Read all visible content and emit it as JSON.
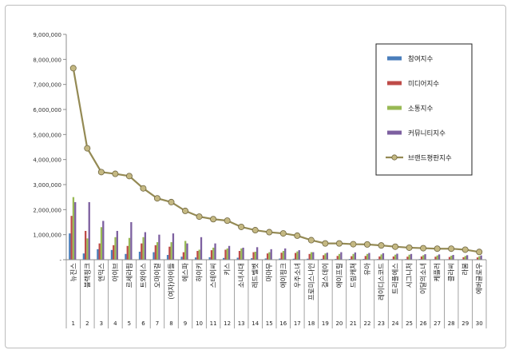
{
  "chart_data": {
    "type": "bar",
    "title": "",
    "xlabel": "",
    "ylabel": "",
    "ylim": [
      0,
      9000000
    ],
    "yticks": [
      "9,000,000",
      "8,000,000",
      "7,000,000",
      "6,000,000",
      "5,000,000",
      "4,000,000",
      "3,000,000",
      "2,000,000",
      "1,000,000",
      "-"
    ],
    "legend_position": "top-right",
    "grid": false,
    "categories": [
      "뉴진스",
      "블랙핑크",
      "엔믹스",
      "아이브",
      "르세라핌",
      "트와이스",
      "오마이걸",
      "(여자)아이들",
      "에스파",
      "하이키",
      "스테이씨",
      "키스",
      "소녀시대",
      "레드벨벳",
      "마마무",
      "에이핑크",
      "우주소녀",
      "프로미스나인",
      "걸스데이",
      "에이프릴",
      "드림캐쳐",
      "유아",
      "레이디스코드",
      "트리플에스",
      "시그니처",
      "이달의소녀",
      "케플러",
      "클라씨",
      "라붐",
      "에버글로우"
    ],
    "ranks": [
      "1",
      "2",
      "3",
      "4",
      "5",
      "6",
      "7",
      "8",
      "9",
      "10",
      "11",
      "12",
      "13",
      "14",
      "15",
      "16",
      "17",
      "18",
      "19",
      "20",
      "21",
      "22",
      "23",
      "24",
      "25",
      "26",
      "27",
      "28",
      "29",
      "30"
    ],
    "series": [
      {
        "name": "참여지수",
        "color": "#4a7ebb",
        "values": [
          1050000,
          250000,
          420000,
          390000,
          230000,
          320000,
          300000,
          190000,
          120000,
          90000,
          100000,
          70000,
          80000,
          60000,
          50000,
          45000,
          40000,
          40000,
          35000,
          30000,
          30000,
          30000,
          25000,
          25000,
          25000,
          25000,
          20000,
          20000,
          20000,
          20000
        ]
      },
      {
        "name": "미디어지수",
        "color": "#be4b48",
        "values": [
          1750000,
          1150000,
          650000,
          580000,
          550000,
          650000,
          580000,
          520000,
          300000,
          350000,
          380000,
          400000,
          350000,
          300000,
          250000,
          280000,
          270000,
          230000,
          180000,
          150000,
          140000,
          150000,
          130000,
          130000,
          120000,
          130000,
          120000,
          110000,
          100000,
          90000
        ]
      },
      {
        "name": "소통지수",
        "color": "#98b954",
        "values": [
          2500000,
          850000,
          1300000,
          900000,
          870000,
          900000,
          700000,
          700000,
          750000,
          400000,
          480000,
          450000,
          450000,
          320000,
          300000,
          350000,
          330000,
          300000,
          250000,
          230000,
          230000,
          230000,
          210000,
          200000,
          200000,
          180000,
          170000,
          160000,
          150000,
          140000
        ]
      },
      {
        "name": "커뮤니티지수",
        "color": "#7d60a0",
        "values": [
          2300000,
          2300000,
          1550000,
          1150000,
          1500000,
          1100000,
          1000000,
          1050000,
          650000,
          900000,
          650000,
          550000,
          480000,
          500000,
          420000,
          450000,
          380000,
          300000,
          280000,
          300000,
          290000,
          270000,
          260000,
          240000,
          230000,
          220000,
          210000,
          190000,
          180000,
          170000
        ]
      },
      {
        "name": "브랜드평판지수",
        "color": "#948a54",
        "type": "line",
        "values": [
          7650000,
          4450000,
          3500000,
          3430000,
          3340000,
          2850000,
          2450000,
          2300000,
          1950000,
          1720000,
          1620000,
          1560000,
          1310000,
          1180000,
          1100000,
          1050000,
          960000,
          780000,
          650000,
          650000,
          620000,
          610000,
          570000,
          520000,
          480000,
          460000,
          440000,
          440000,
          400000,
          310000
        ]
      }
    ]
  }
}
